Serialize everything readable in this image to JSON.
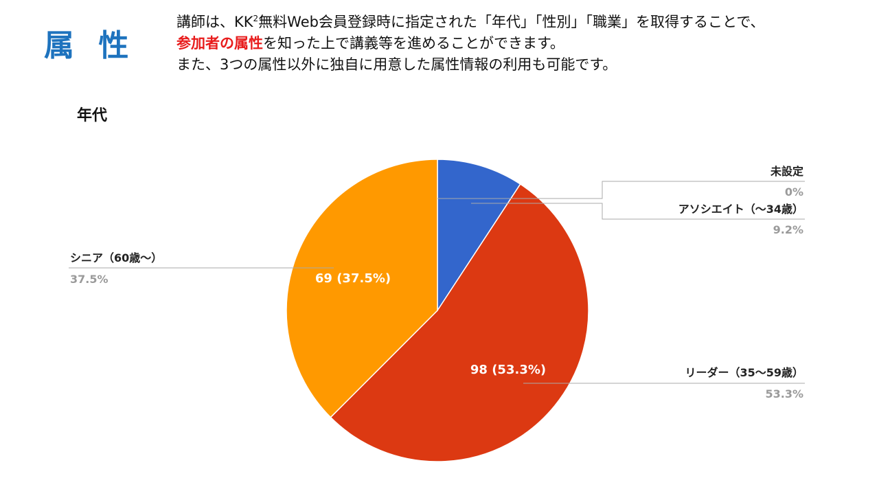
{
  "header": {
    "title": "属 性",
    "line1_a": "講師は、KK",
    "line1_sup": "2",
    "line1_b": "無料Web会員登録時に指定された「年代」「性別」「職業」を取得することで、",
    "line2_highlight": "参加者の属性",
    "line2_rest": "を知った上で講義等を進めることができます。",
    "line3": "また、3つの属性以外に独自に用意した属性情報の利用も可能です。"
  },
  "chart_data": {
    "type": "pie",
    "title": "年代",
    "slices": [
      {
        "label": "未設定",
        "value": 0,
        "percent_label": "0%",
        "color": "#3366cc",
        "inner_label": ""
      },
      {
        "label": "アソシエイト（～34歳）",
        "value": 17,
        "percent_label": "9.2%",
        "color": "#3366cc",
        "inner_label": ""
      },
      {
        "label": "リーダー（35～59歳）",
        "value": 98,
        "percent_label": "53.3%",
        "color": "#dc3912",
        "inner_label": "98 (53.3%)"
      },
      {
        "label": "シニア（60歳～）",
        "value": 69,
        "percent_label": "37.5%",
        "color": "#ff9900",
        "inner_label": "69 (37.5%)"
      }
    ]
  }
}
